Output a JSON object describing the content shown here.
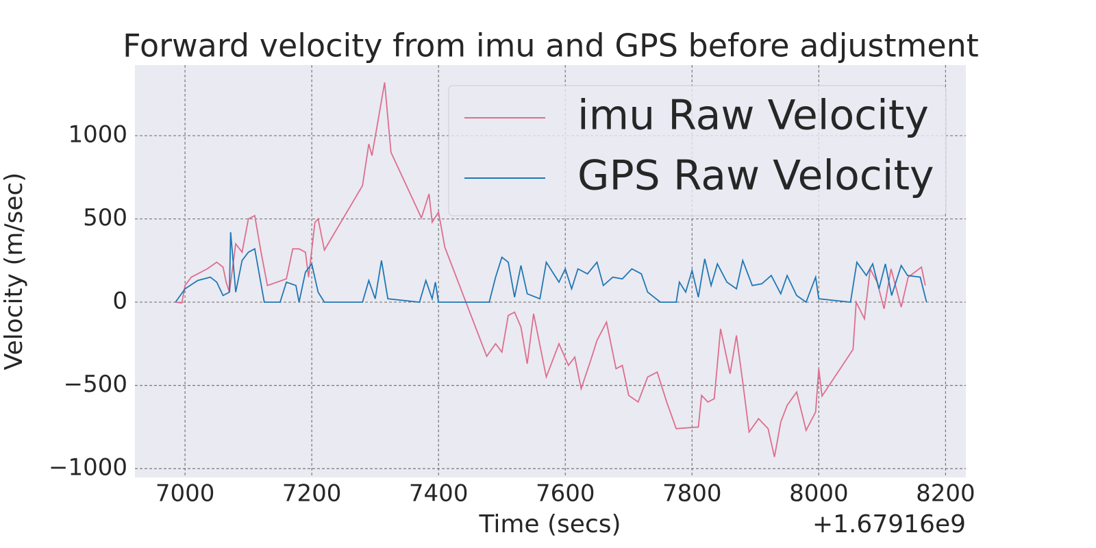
{
  "chart_data": {
    "type": "line",
    "title": "Forward velocity from imu and GPS before adjustment",
    "x_label": "Time (secs)",
    "y_label": "Velocity (m/sec)",
    "x_offset_label": "+1.67916e9",
    "xlim": [
      6921,
      8232
    ],
    "ylim": [
      -1053,
      1424
    ],
    "xticks": [
      7000,
      7200,
      7400,
      7600,
      7800,
      8000,
      8200
    ],
    "yticks": [
      {
        "value": -1000,
        "label": "−1000"
      },
      {
        "value": -500,
        "label": "−500"
      },
      0,
      500,
      1000
    ],
    "grid": true,
    "legend": "upper right",
    "series": [
      {
        "name": "imu Raw Velocity",
        "color": "#dd6e8d",
        "x": [
          6985,
          6995,
          7000,
          7010,
          7020,
          7035,
          7050,
          7060,
          7065,
          7070,
          7080,
          7090,
          7100,
          7110,
          7120,
          7130,
          7160,
          7170,
          7180,
          7190,
          7195,
          7205,
          7210,
          7220,
          7280,
          7290,
          7295,
          7305,
          7315,
          7325,
          7373,
          7385,
          7390,
          7400,
          7410,
          7476,
          7490,
          7500,
          7510,
          7520,
          7530,
          7540,
          7550,
          7570,
          7590,
          7605,
          7615,
          7625,
          7640,
          7650,
          7665,
          7680,
          7690,
          7700,
          7715,
          7730,
          7745,
          7760,
          7775,
          7810,
          7815,
          7825,
          7835,
          7845,
          7860,
          7870,
          7880,
          7890,
          7905,
          7920,
          7930,
          7940,
          7950,
          7965,
          7980,
          7995,
          8000,
          8005,
          8054,
          8059,
          8072,
          8081,
          8092,
          8103,
          8114,
          8130,
          8141,
          8162,
          8168
        ],
        "values": [
          0,
          -5,
          100,
          150,
          170,
          200,
          240,
          210,
          120,
          60,
          350,
          300,
          500,
          520,
          300,
          100,
          140,
          320,
          320,
          300,
          150,
          480,
          500,
          313,
          700,
          950,
          880,
          1100,
          1320,
          900,
          506,
          650,
          480,
          540,
          330,
          -325,
          -250,
          -300,
          -80,
          -60,
          -150,
          -370,
          -70,
          -450,
          -250,
          -380,
          -330,
          -520,
          -350,
          -230,
          -120,
          -400,
          -380,
          -560,
          -600,
          -450,
          -420,
          -600,
          -760,
          -750,
          -560,
          -600,
          -580,
          -160,
          -430,
          -200,
          -480,
          -780,
          -700,
          -760,
          -930,
          -720,
          -620,
          -540,
          -770,
          -660,
          -400,
          -564,
          -284,
          0,
          -100,
          200,
          120,
          -40,
          200,
          -30,
          150,
          210,
          100
        ]
      },
      {
        "name": "GPS Raw Velocity",
        "color": "#1f77b4",
        "x": [
          6985,
          7000,
          7020,
          7040,
          7050,
          7060,
          7070,
          7072,
          7080,
          7090,
          7100,
          7110,
          7125,
          7150,
          7160,
          7175,
          7180,
          7190,
          7200,
          7210,
          7220,
          7280,
          7290,
          7300,
          7310,
          7320,
          7370,
          7380,
          7390,
          7395,
          7400,
          7480,
          7490,
          7500,
          7510,
          7520,
          7530,
          7540,
          7560,
          7570,
          7590,
          7600,
          7610,
          7620,
          7635,
          7650,
          7660,
          7675,
          7690,
          7705,
          7720,
          7730,
          7750,
          7775,
          7780,
          7790,
          7800,
          7810,
          7820,
          7830,
          7840,
          7855,
          7870,
          7880,
          7895,
          7910,
          7925,
          7940,
          7950,
          7965,
          7980,
          7995,
          8000,
          8050,
          8060,
          8075,
          8085,
          8095,
          8105,
          8115,
          8130,
          8140,
          8160,
          8170
        ],
        "values": [
          0,
          80,
          130,
          150,
          120,
          40,
          60,
          420,
          60,
          250,
          300,
          320,
          0,
          0,
          120,
          100,
          0,
          180,
          230,
          60,
          0,
          0,
          130,
          20,
          250,
          20,
          0,
          130,
          20,
          120,
          0,
          0,
          150,
          270,
          240,
          30,
          220,
          50,
          20,
          240,
          120,
          200,
          80,
          200,
          170,
          240,
          100,
          150,
          140,
          200,
          170,
          60,
          0,
          0,
          120,
          60,
          190,
          30,
          260,
          100,
          230,
          120,
          80,
          250,
          100,
          110,
          160,
          50,
          160,
          40,
          0,
          150,
          20,
          0,
          240,
          160,
          230,
          80,
          230,
          40,
          220,
          160,
          150,
          0
        ]
      }
    ]
  }
}
